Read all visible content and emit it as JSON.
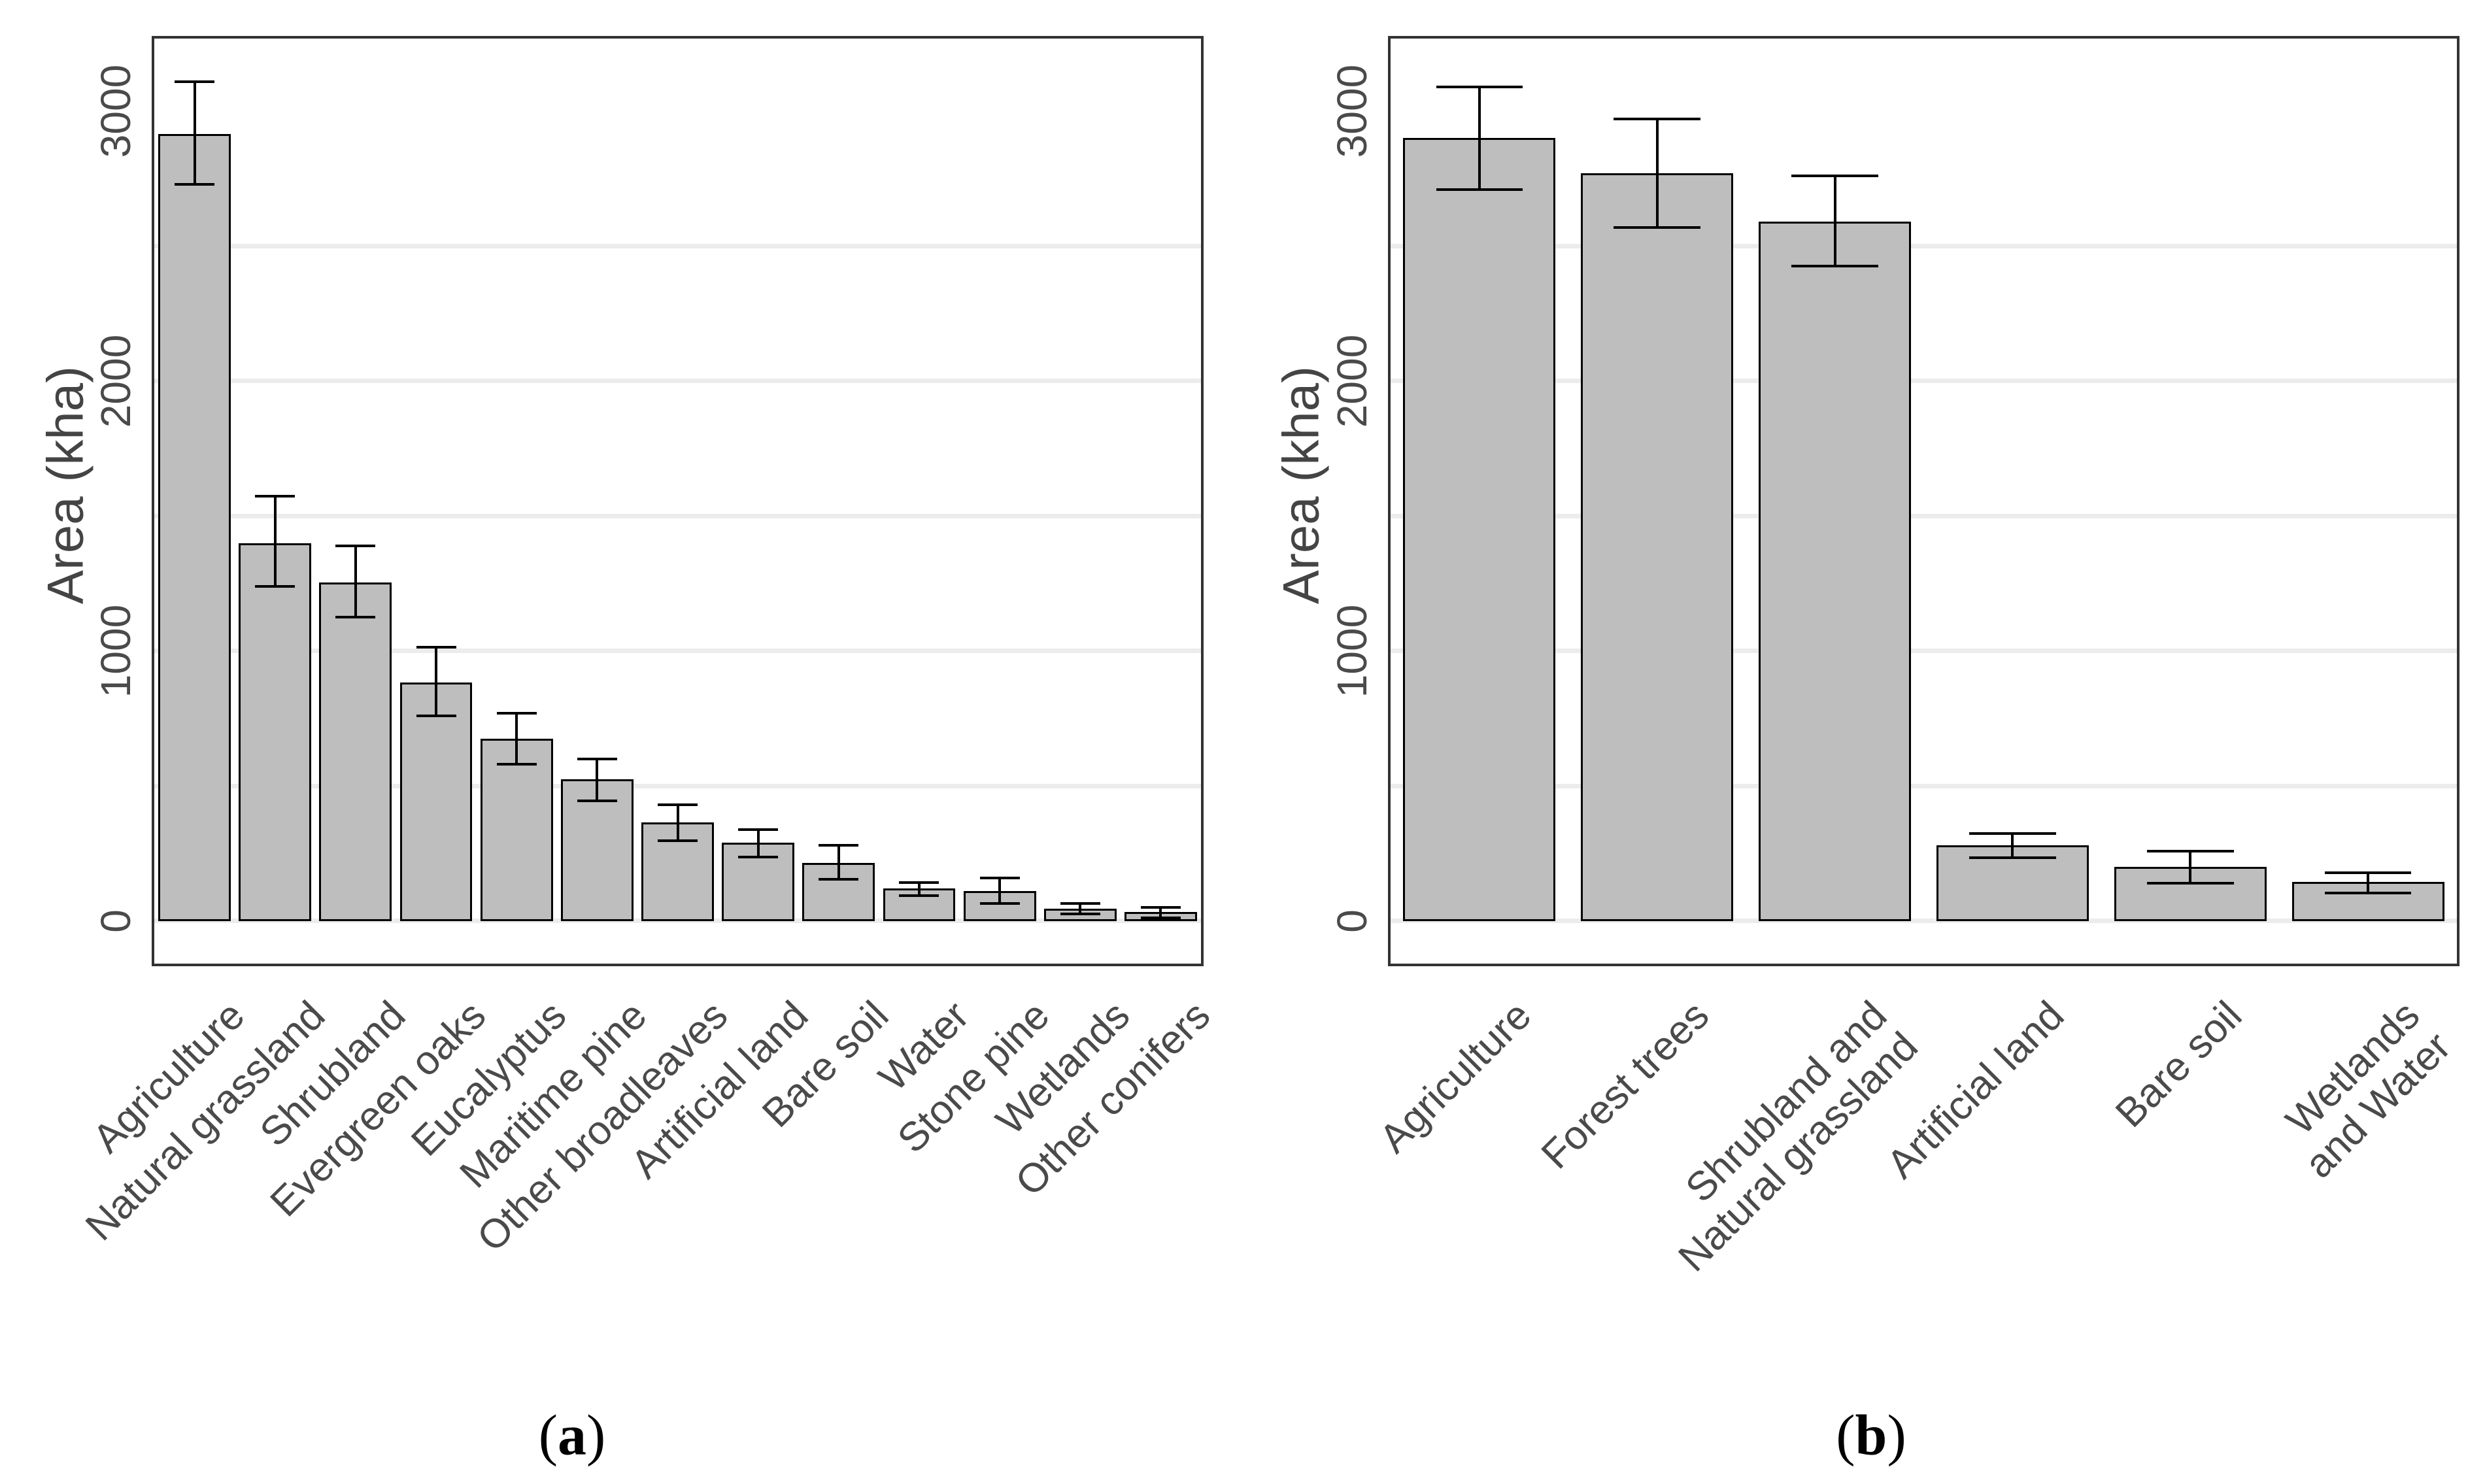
{
  "axes": {
    "y_title": "Area (kha)",
    "y_ticks": [
      "0",
      "1000",
      "2000",
      "3000"
    ],
    "y_tick_values": [
      0,
      1000,
      2000,
      3000
    ],
    "grid_interval": 500,
    "grid_on": true
  },
  "captions": {
    "a": {
      "open": "(",
      "letter": "a",
      "close": ")"
    },
    "b": {
      "open": "(",
      "letter": "b",
      "close": ")"
    }
  },
  "colors": {
    "bar_fill": "#bebebe",
    "bar_outline": "#000000",
    "error_bar": "#000000",
    "gridline": "#ececec",
    "panel_border": "#333333",
    "axis_text": "#4a4a4a",
    "caption_text": "#000000"
  },
  "chart_data": [
    {
      "type": "bar",
      "panel": "a",
      "title": "",
      "xlabel": "",
      "ylabel": "Area (kha)",
      "ylim": [
        0,
        3300
      ],
      "legend": "none",
      "categories": [
        "Agriculture",
        "Natural grassland",
        "Shrubland",
        "Evergreen oaks",
        "Eucalyptus",
        "Maritime pine",
        "Other broadleaves",
        "Artificial land",
        "Bare soil",
        "Water",
        "Stone pine",
        "Wetlands",
        "Other conifers"
      ],
      "values": [
        2915,
        1400,
        1255,
        885,
        675,
        525,
        365,
        290,
        215,
        120,
        112,
        47,
        34
      ],
      "error_low": [
        2730,
        1240,
        1125,
        760,
        580,
        445,
        297,
        237,
        155,
        95,
        65,
        26,
        13
      ],
      "error_high": [
        3110,
        1575,
        1390,
        1015,
        770,
        600,
        432,
        338,
        280,
        142,
        159,
        65,
        52
      ]
    },
    {
      "type": "bar",
      "panel": "b",
      "title": "",
      "xlabel": "",
      "ylabel": "Area (kha)",
      "ylim": [
        0,
        3300
      ],
      "legend": "none",
      "categories": [
        "Agriculture",
        "Forest trees",
        "Shrubland and\nNatural grassland",
        "Artificial land",
        "Bare soil",
        "Wetlands\nand Water"
      ],
      "values": [
        2900,
        2770,
        2590,
        280,
        200,
        145
      ],
      "error_low": [
        2710,
        2570,
        2425,
        235,
        140,
        105
      ],
      "error_high": [
        3090,
        2970,
        2760,
        325,
        260,
        180
      ]
    }
  ]
}
